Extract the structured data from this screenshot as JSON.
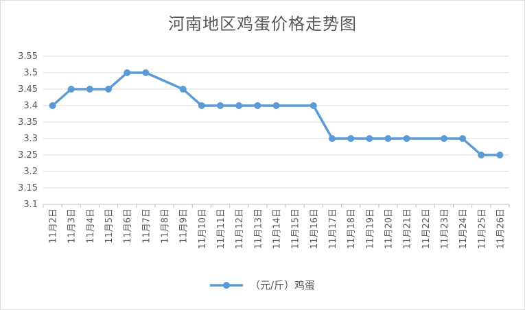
{
  "chart_data": {
    "type": "line",
    "title": "河南地区鸡蛋价格走势图",
    "categories": [
      "11月2日",
      "11月3日",
      "11月4日",
      "11月5日",
      "11月6日",
      "11月7日",
      "11月8日",
      "11月9日",
      "11月10日",
      "11月11日",
      "11月12日",
      "11月13日",
      "11月14日",
      "11月15日",
      "11月16日",
      "11月17日",
      "11月18日",
      "11月19日",
      "11月20日",
      "11月21日",
      "11月22日",
      "11月23日",
      "11月24日",
      "11月25日",
      "11月26日"
    ],
    "series": [
      {
        "name": "（元/斤）鸡蛋",
        "color": "#5B9BD5",
        "values": [
          3.4,
          3.45,
          3.45,
          3.45,
          3.5,
          3.5,
          null,
          3.45,
          3.4,
          3.4,
          3.4,
          3.4,
          3.4,
          null,
          3.4,
          3.3,
          3.3,
          3.3,
          3.3,
          3.3,
          null,
          3.3,
          3.3,
          3.25,
          3.25
        ]
      }
    ],
    "ylim": [
      3.1,
      3.55
    ],
    "yticks": [
      "3.1",
      "3.15",
      "3.2",
      "3.25",
      "3.3",
      "3.35",
      "3.4",
      "3.45",
      "3.5",
      "3.55"
    ],
    "grid": true,
    "legend": "bottom"
  }
}
